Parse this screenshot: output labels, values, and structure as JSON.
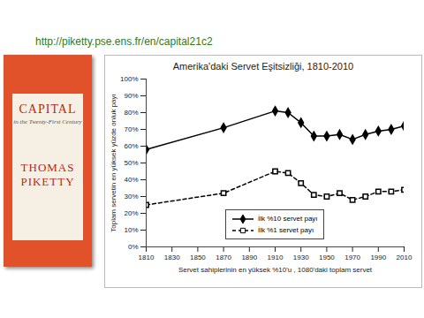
{
  "url": "http://piketty.pse.ens.fr/en/capital21c2",
  "book_cover": {
    "title": "CAPITAL",
    "subtitle": "in the Twenty-First Century",
    "author": [
      "THOMAS",
      "PIKETTY"
    ]
  },
  "chart_data": {
    "type": "line",
    "title": "Amerika'daki Servet Eşitsizliği, 1810-2010",
    "x_label": "Servet sahiplerinin en yüksek %10'u , 1080'daki toplam servet",
    "y_label": "Toplam servetin en yüksek yüzde onluk payı",
    "x": [
      1810,
      1870,
      1910,
      1920,
      1930,
      1940,
      1950,
      1960,
      1970,
      1980,
      1990,
      2000,
      2010
    ],
    "series": [
      {
        "name": "İlk %10 servet payı",
        "color": "#000000",
        "marker": "diamond",
        "line_style": "solid",
        "values": [
          58,
          71,
          81,
          80,
          74,
          66,
          66,
          67,
          64,
          67,
          69,
          70,
          72
        ]
      },
      {
        "name": "İlk %1 servet payı",
        "color": "#000000",
        "marker": "square_open",
        "line_style": "dashed",
        "values": [
          25,
          32,
          45,
          44,
          38,
          31,
          30,
          32,
          28,
          30,
          33,
          33,
          34
        ]
      }
    ],
    "xlim": [
      1810,
      2010
    ],
    "xticks": [
      1810,
      1830,
      1850,
      1870,
      1890,
      1910,
      1930,
      1950,
      1970,
      1990,
      2010
    ],
    "ylim": [
      0,
      100
    ],
    "yticks": [
      {
        "value": 0,
        "label": "0%"
      },
      {
        "value": 10,
        "label": "10%"
      },
      {
        "value": 20,
        "label": "20%"
      },
      {
        "value": 30,
        "label": "30%"
      },
      {
        "value": 40,
        "label": "40%"
      },
      {
        "value": 50,
        "label": "50%"
      },
      {
        "value": 60,
        "label": "60%"
      },
      {
        "value": 70,
        "label": "70%"
      },
      {
        "value": 80,
        "label": "80%"
      },
      {
        "value": 90,
        "label": "90%"
      },
      {
        "value": 100,
        "label": "100%"
      }
    ],
    "grid": false,
    "legend": "bottom"
  }
}
